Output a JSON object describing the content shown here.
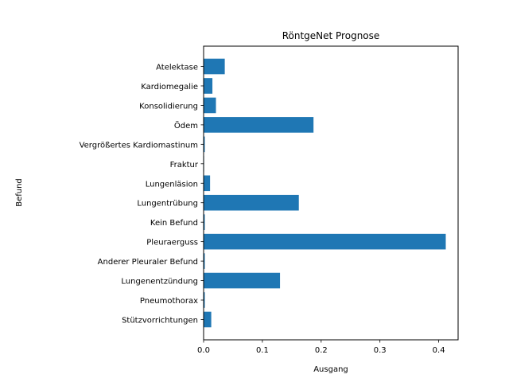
{
  "chart_data": {
    "type": "bar",
    "orientation": "horizontal",
    "title": "RöntgeNet Prognose",
    "xlabel": "Ausgang",
    "ylabel": "Befund",
    "xlim": [
      0,
      0.433
    ],
    "xticks": [
      0.0,
      0.1,
      0.2,
      0.3,
      0.4
    ],
    "xtick_labels": [
      "0.0",
      "0.1",
      "0.2",
      "0.3",
      "0.4"
    ],
    "grid": false,
    "bar_color": "#1f77b4",
    "categories": [
      "Atelektase",
      "Kardiomegalie",
      "Konsolidierung",
      "Ödem",
      "Vergrößertes Kardiomastinum",
      "Fraktur",
      "Lungenläsion",
      "Lungentrübung",
      "Kein Befund",
      "Pleuraerguss",
      "Anderer Pleuraler Befund",
      "Lungenentzündung",
      "Pneumothorax",
      "Stützvorrichtungen"
    ],
    "values": [
      0.036,
      0.015,
      0.021,
      0.187,
      0.002,
      0.0005,
      0.011,
      0.162,
      0.002,
      0.412,
      0.002,
      0.13,
      0.002,
      0.013
    ]
  }
}
